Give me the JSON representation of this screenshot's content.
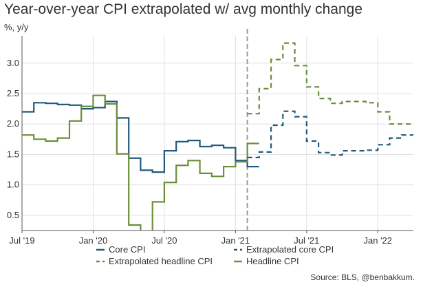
{
  "header": {
    "title": "Year-over-year CPI extrapolated w/ avg monthly change",
    "subtitle": "%, y/y"
  },
  "footer": {
    "source": "Source: BLS, @benbakkum."
  },
  "chart_data": {
    "type": "line",
    "title": "Year-over-year CPI extrapolated w/ avg monthly change",
    "ylabel": "%, y/y",
    "x_unit": "month",
    "xlim": [
      "2019-07",
      "2022-04"
    ],
    "ylim": [
      0.25,
      3.45
    ],
    "grid": true,
    "extrapolation_start": "2021-02",
    "x_ticks": [
      {
        "x": "2019-07",
        "label": "Jul '19"
      },
      {
        "x": "2020-01",
        "label": "Jan '20"
      },
      {
        "x": "2020-07",
        "label": "Jul '20"
      },
      {
        "x": "2021-01",
        "label": "Jan '21"
      },
      {
        "x": "2021-07",
        "label": "Jul '21"
      },
      {
        "x": "2022-01",
        "label": "Jan '22"
      }
    ],
    "y_ticks": [
      0.5,
      1.0,
      1.5,
      2.0,
      2.5,
      3.0
    ],
    "y_tick_labels": [
      "0.5",
      "1.0",
      "1.5",
      "2.0",
      "2.5",
      "3.0"
    ],
    "legend": {
      "placement": "bottom"
    },
    "series": [
      {
        "name": "Core CPI",
        "color": "#1f5a7a",
        "dashed": false,
        "points": [
          [
            "2019-07",
            2.2
          ],
          [
            "2019-08",
            2.35
          ],
          [
            "2019-09",
            2.34
          ],
          [
            "2019-10",
            2.32
          ],
          [
            "2019-11",
            2.31
          ],
          [
            "2019-12",
            2.25
          ],
          [
            "2020-01",
            2.27
          ],
          [
            "2020-02",
            2.37
          ],
          [
            "2020-03",
            2.1
          ],
          [
            "2020-04",
            1.44
          ],
          [
            "2020-05",
            1.24
          ],
          [
            "2020-06",
            1.21
          ],
          [
            "2020-07",
            1.56
          ],
          [
            "2020-08",
            1.71
          ],
          [
            "2020-09",
            1.73
          ],
          [
            "2020-10",
            1.63
          ],
          [
            "2020-11",
            1.65
          ],
          [
            "2020-12",
            1.61
          ],
          [
            "2021-01",
            1.4
          ],
          [
            "2021-02",
            1.3
          ]
        ]
      },
      {
        "name": "Headline CPI",
        "color": "#6b8e3a",
        "dashed": false,
        "points": [
          [
            "2019-07",
            1.82
          ],
          [
            "2019-08",
            1.75
          ],
          [
            "2019-09",
            1.72
          ],
          [
            "2019-10",
            1.77
          ],
          [
            "2019-11",
            2.05
          ],
          [
            "2019-12",
            2.29
          ],
          [
            "2020-01",
            2.47
          ],
          [
            "2020-02",
            2.33
          ],
          [
            "2020-03",
            1.51
          ],
          [
            "2020-04",
            0.34
          ],
          [
            "2020-05",
            0.22
          ],
          [
            "2020-06",
            0.72
          ],
          [
            "2020-07",
            1.04
          ],
          [
            "2020-08",
            1.32
          ],
          [
            "2020-09",
            1.4
          ],
          [
            "2020-10",
            1.19
          ],
          [
            "2020-11",
            1.14
          ],
          [
            "2020-12",
            1.3
          ],
          [
            "2021-01",
            1.38
          ],
          [
            "2021-02",
            1.68
          ]
        ]
      },
      {
        "name": "Extrapolated core CPI",
        "color": "#1f5a7a",
        "dashed": true,
        "points": [
          [
            "2021-02",
            1.45
          ],
          [
            "2021-03",
            1.54
          ],
          [
            "2021-04",
            1.98
          ],
          [
            "2021-05",
            2.21
          ],
          [
            "2021-06",
            2.12
          ],
          [
            "2021-07",
            1.72
          ],
          [
            "2021-08",
            1.53
          ],
          [
            "2021-09",
            1.49
          ],
          [
            "2021-10",
            1.56
          ],
          [
            "2021-11",
            1.56
          ],
          [
            "2021-12",
            1.57
          ],
          [
            "2022-01",
            1.66
          ],
          [
            "2022-02",
            1.77
          ],
          [
            "2022-03",
            1.82
          ],
          [
            "2022-04",
            1.82
          ]
        ]
      },
      {
        "name": "Extrapolated headline CPI",
        "color": "#6b8e3a",
        "dashed": true,
        "points": [
          [
            "2021-02",
            2.17
          ],
          [
            "2021-03",
            2.58
          ],
          [
            "2021-04",
            3.06
          ],
          [
            "2021-05",
            3.33
          ],
          [
            "2021-06",
            2.96
          ],
          [
            "2021-07",
            2.61
          ],
          [
            "2021-08",
            2.42
          ],
          [
            "2021-09",
            2.34
          ],
          [
            "2021-10",
            2.37
          ],
          [
            "2021-11",
            2.37
          ],
          [
            "2021-12",
            2.35
          ],
          [
            "2022-01",
            2.2
          ],
          [
            "2022-02",
            2.0
          ],
          [
            "2022-03",
            2.0
          ],
          [
            "2022-04",
            2.0
          ]
        ]
      }
    ],
    "legend_order": [
      "Core CPI",
      "Extrapolated core CPI",
      "Extrapolated headline CPI",
      "Headline CPI"
    ]
  }
}
